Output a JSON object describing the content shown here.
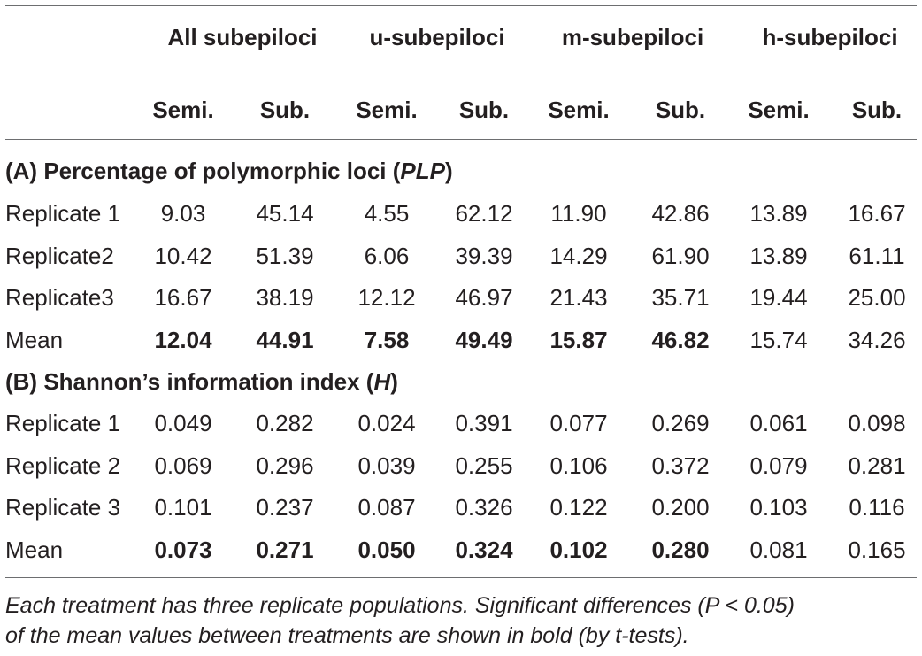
{
  "groups": [
    "All subepiloci",
    "u-subepiloci",
    "m-subepiloci",
    "h-subepiloci"
  ],
  "subcols": [
    "Semi.",
    "Sub.",
    "Semi.",
    "Sub.",
    "Semi.",
    "Sub.",
    "Semi.",
    "Sub."
  ],
  "sectionA": {
    "text": "(A) Percentage of polymorphic loci (",
    "italic": "PLP",
    "close": ")"
  },
  "sectionB": {
    "text": "(B) Shannon’s information index (",
    "italic": "H",
    "close": ")"
  },
  "rowsA": [
    {
      "label": "Replicate 1",
      "bold": false,
      "values": [
        "9.03",
        "45.14",
        "4.55",
        "62.12",
        "11.90",
        "42.86",
        "13.89",
        "16.67"
      ]
    },
    {
      "label": "Replicate2",
      "bold": false,
      "values": [
        "10.42",
        "51.39",
        "6.06",
        "39.39",
        "14.29",
        "61.90",
        "13.89",
        "61.11"
      ]
    },
    {
      "label": "Replicate3",
      "bold": false,
      "values": [
        "16.67",
        "38.19",
        "12.12",
        "46.97",
        "21.43",
        "35.71",
        "19.44",
        "25.00"
      ]
    },
    {
      "label": "Mean",
      "bold": true,
      "boldCount": 6,
      "values": [
        "12.04",
        "44.91",
        "7.58",
        "49.49",
        "15.87",
        "46.82",
        "15.74",
        "34.26"
      ]
    }
  ],
  "rowsB": [
    {
      "label": "Replicate 1",
      "bold": false,
      "values": [
        "0.049",
        "0.282",
        "0.024",
        "0.391",
        "0.077",
        "0.269",
        "0.061",
        "0.098"
      ]
    },
    {
      "label": "Replicate 2",
      "bold": false,
      "values": [
        "0.069",
        "0.296",
        "0.039",
        "0.255",
        "0.106",
        "0.372",
        "0.079",
        "0.281"
      ]
    },
    {
      "label": "Replicate 3",
      "bold": false,
      "values": [
        "0.101",
        "0.237",
        "0.087",
        "0.326",
        "0.122",
        "0.200",
        "0.103",
        "0.116"
      ]
    },
    {
      "label": "Mean",
      "bold": true,
      "boldCount": 6,
      "values": [
        "0.073",
        "0.271",
        "0.050",
        "0.324",
        "0.102",
        "0.280",
        "0.081",
        "0.165"
      ]
    }
  ],
  "footnote": [
    "Each treatment has three replicate populations. Significant differences (P < 0.05)",
    "of the mean values between treatments are shown in bold (by t-tests)."
  ]
}
